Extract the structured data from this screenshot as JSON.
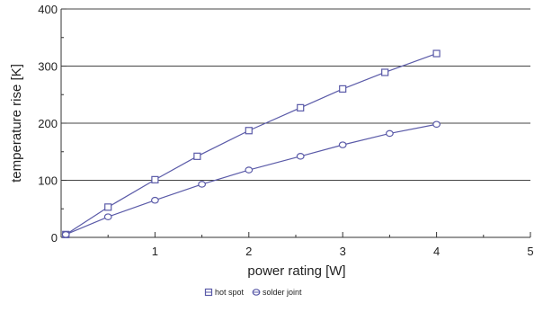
{
  "chart_data": {
    "type": "line",
    "xlabel": "power rating [W]",
    "ylabel": "temperature rise [K]",
    "xlim": [
      0,
      5
    ],
    "ylim": [
      0,
      400
    ],
    "x_ticks": [
      "1",
      "2",
      "3",
      "4",
      "5"
    ],
    "y_ticks": [
      "0",
      "100",
      "200",
      "300",
      "400"
    ],
    "grid": "horizontal",
    "legend_position": "bottom-center",
    "series": [
      {
        "name": "hot spot",
        "marker": "square",
        "color": "#5a5aa8",
        "points": [
          [
            0.05,
            5
          ],
          [
            0.5,
            53
          ],
          [
            1.0,
            101
          ],
          [
            1.45,
            142
          ],
          [
            2.0,
            187
          ],
          [
            2.55,
            227
          ],
          [
            3.0,
            260
          ],
          [
            3.45,
            289
          ],
          [
            4.0,
            322
          ]
        ]
      },
      {
        "name": "solder joint",
        "marker": "circle",
        "color": "#5a5aa8",
        "points": [
          [
            0.05,
            5
          ],
          [
            0.5,
            36
          ],
          [
            1.0,
            65
          ],
          [
            1.5,
            93
          ],
          [
            2.0,
            118
          ],
          [
            2.55,
            142
          ],
          [
            3.0,
            162
          ],
          [
            3.5,
            182
          ],
          [
            4.0,
            198
          ]
        ]
      }
    ]
  }
}
